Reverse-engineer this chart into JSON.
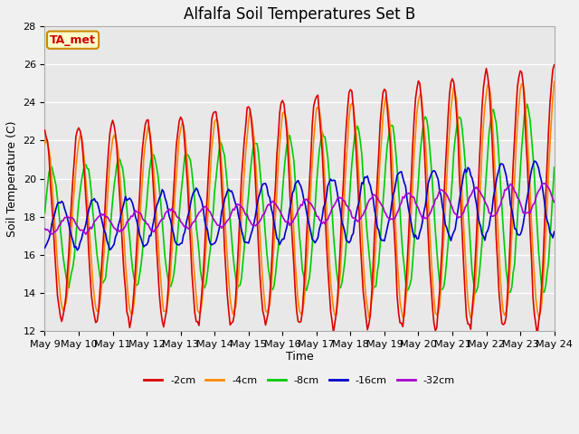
{
  "title": "Alfalfa Soil Temperatures Set B",
  "xlabel": "Time",
  "ylabel": "Soil Temperature (C)",
  "ylim": [
    12,
    28
  ],
  "start_day": 9,
  "end_day": 24,
  "annotation_text": "TA_met",
  "series": {
    "-2cm": {
      "color": "#dd0000",
      "linewidth": 1.2
    },
    "-4cm": {
      "color": "#ff8800",
      "linewidth": 1.2
    },
    "-8cm": {
      "color": "#00cc00",
      "linewidth": 1.2
    },
    "-16cm": {
      "color": "#0000cc",
      "linewidth": 1.2
    },
    "-32cm": {
      "color": "#aa00cc",
      "linewidth": 1.2
    }
  },
  "legend_order": [
    "-2cm",
    "-4cm",
    "-8cm",
    "-16cm",
    "-32cm"
  ],
  "bg_color": "#e8e8e8",
  "grid_color": "#ffffff",
  "fig_bg_color": "#f0f0f0",
  "title_fontsize": 12,
  "axis_fontsize": 9,
  "tick_fontsize": 8,
  "annotation_fontsize": 9
}
